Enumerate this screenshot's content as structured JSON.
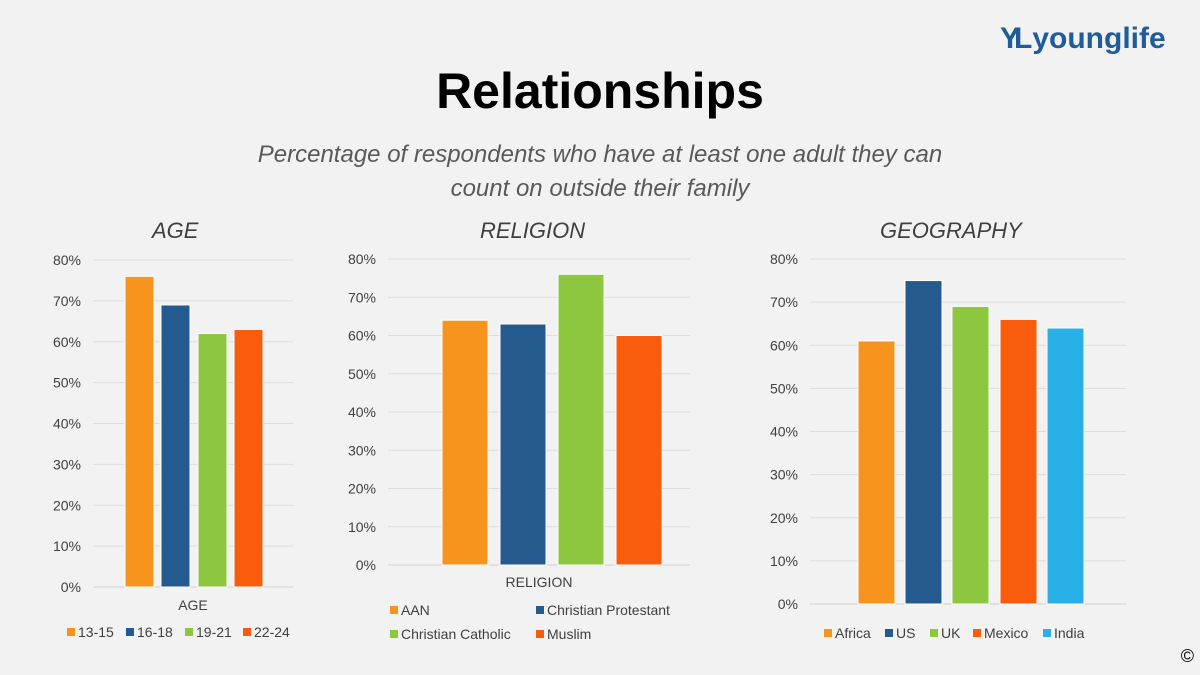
{
  "header": {
    "title": "Relationships",
    "subtitle_line1": "Percentage of respondents who have at least one adult they can",
    "subtitle_line2": "count on outside their family",
    "logo_text": "younglife",
    "logo_mark": "YL",
    "copyright": "©"
  },
  "chart_data": [
    {
      "type": "bar",
      "title": "AGE",
      "xlabel": "AGE",
      "ylabel": "",
      "ylim": [
        0,
        0.8
      ],
      "yticks": [
        "0%",
        "10%",
        "20%",
        "30%",
        "40%",
        "50%",
        "60%",
        "70%",
        "80%"
      ],
      "grid": true,
      "legend": "bottom",
      "series": [
        {
          "name": "13-15",
          "value": 0.76,
          "color": "#f7941d"
        },
        {
          "name": "16-18",
          "value": 0.69,
          "color": "#245a8d"
        },
        {
          "name": "19-21",
          "value": 0.62,
          "color": "#8dc63f"
        },
        {
          "name": "22-24",
          "value": 0.63,
          "color": "#f95c0d"
        }
      ]
    },
    {
      "type": "bar",
      "title": "RELIGION",
      "xlabel": "RELIGION",
      "ylabel": "",
      "ylim": [
        0,
        0.8
      ],
      "yticks": [
        "0%",
        "10%",
        "20%",
        "30%",
        "40%",
        "50%",
        "60%",
        "70%",
        "80%"
      ],
      "grid": true,
      "legend": "bottom",
      "series": [
        {
          "name": "AAN",
          "value": 0.64,
          "color": "#f7941d"
        },
        {
          "name": "Christian Protestant",
          "value": 0.63,
          "color": "#245a8d"
        },
        {
          "name": "Christian Catholic",
          "value": 0.76,
          "color": "#8dc63f"
        },
        {
          "name": "Muslim",
          "value": 0.6,
          "color": "#f95c0d"
        }
      ]
    },
    {
      "type": "bar",
      "title": "GEOGRAPHY",
      "xlabel": "",
      "ylabel": "",
      "ylim": [
        0,
        0.8
      ],
      "yticks": [
        "0%",
        "10%",
        "20%",
        "30%",
        "40%",
        "50%",
        "60%",
        "70%",
        "80%"
      ],
      "grid": true,
      "legend": "bottom",
      "series": [
        {
          "name": "Africa",
          "value": 0.61,
          "color": "#f7941d"
        },
        {
          "name": "US",
          "value": 0.75,
          "color": "#245a8d"
        },
        {
          "name": "UK",
          "value": 0.69,
          "color": "#8dc63f"
        },
        {
          "name": "Mexico",
          "value": 0.66,
          "color": "#f95c0d"
        },
        {
          "name": "India",
          "value": 0.64,
          "color": "#29b0e6"
        }
      ]
    }
  ]
}
